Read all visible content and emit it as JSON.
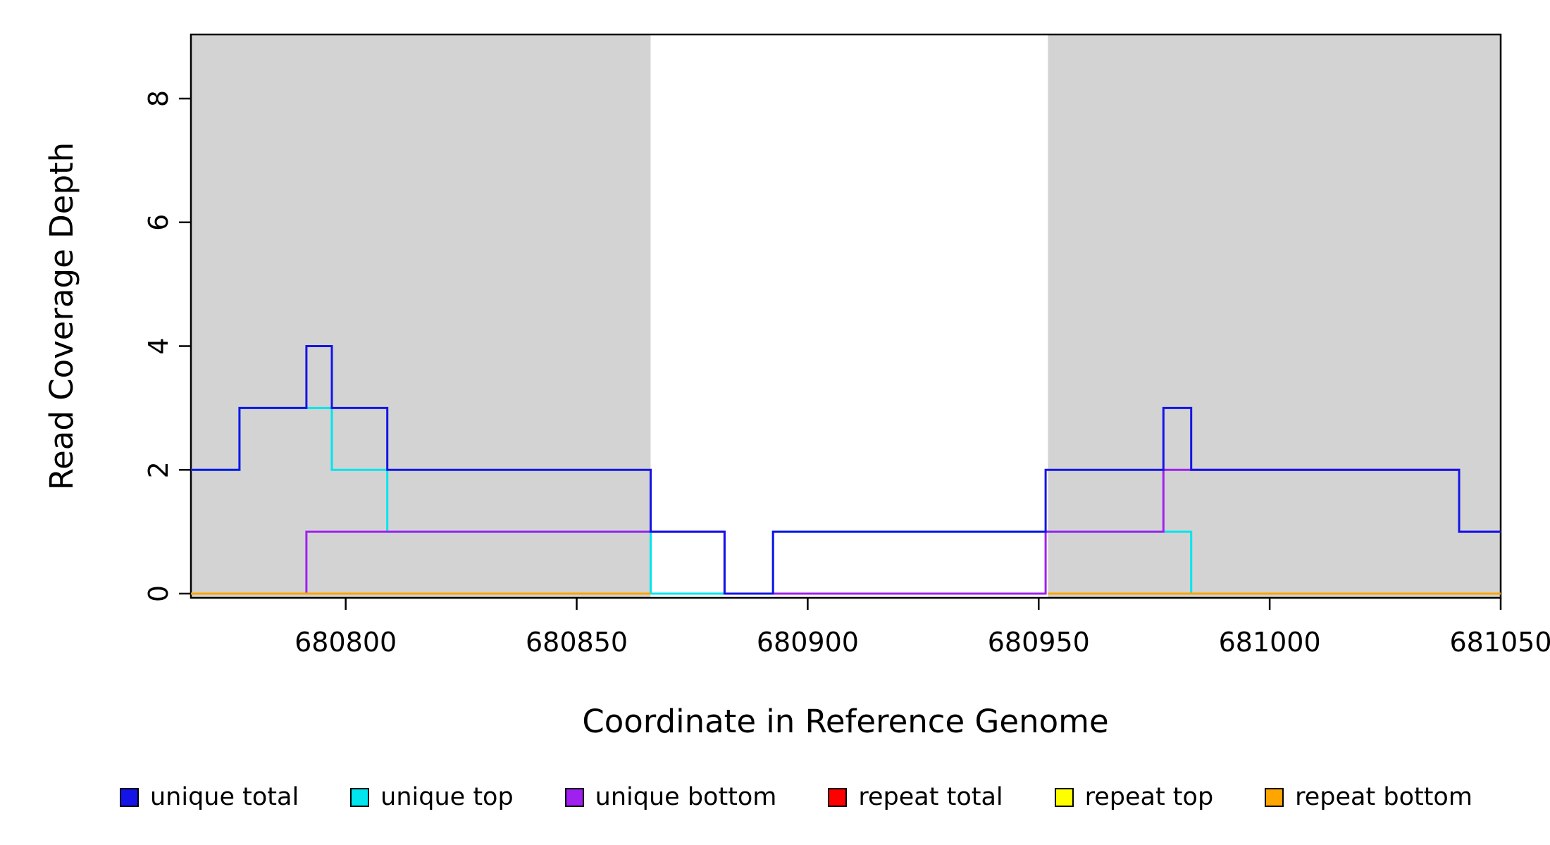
{
  "chart_data": {
    "type": "line",
    "subtype": "step-coverage",
    "title": "",
    "xlabel": "Coordinate in Reference Genome",
    "ylabel": "Read Coverage Depth",
    "xlim": [
      680766.5,
      681050
    ],
    "ylim": [
      0,
      9
    ],
    "x_ticks": [
      680800,
      680850,
      680900,
      680950,
      681000,
      681050
    ],
    "y_ticks": [
      0,
      2,
      4,
      6,
      8
    ],
    "grid": false,
    "legend_position": "bottom",
    "shaded_regions": {
      "meaning": "repeat regions",
      "color": "#d3d3d3",
      "ranges": [
        [
          680766.5,
          680866
        ],
        [
          680952,
          681050
        ]
      ]
    },
    "series": [
      {
        "name": "unique top",
        "color": "#00E5EE",
        "paths": [
          [
            [
              680766.5,
              2
            ],
            [
              680777,
              3
            ],
            [
              680797,
              2
            ],
            [
              680809,
              1
            ],
            [
              680866,
              0
            ],
            [
              680892.5,
              1
            ],
            [
              680983,
              0
            ],
            [
              681050,
              0
            ]
          ]
        ]
      },
      {
        "name": "unique bottom",
        "color": "#A020F0",
        "paths": [
          [
            [
              680766.5,
              0
            ],
            [
              680791.5,
              1
            ],
            [
              680882,
              0
            ],
            [
              680951.5,
              1
            ],
            [
              680977,
              2
            ],
            [
              681041,
              1
            ],
            [
              681050,
              1
            ]
          ]
        ]
      },
      {
        "name": "unique total",
        "color": "#1414E8",
        "paths": [
          [
            [
              680766.5,
              2
            ],
            [
              680777,
              3
            ],
            [
              680791.5,
              4
            ],
            [
              680797,
              3
            ],
            [
              680809,
              2
            ],
            [
              680866,
              1
            ],
            [
              680882,
              0
            ],
            [
              680892.5,
              1
            ],
            [
              680951.5,
              2
            ],
            [
              680977,
              3
            ],
            [
              680983,
              2
            ],
            [
              681041,
              1
            ],
            [
              681050,
              1
            ]
          ]
        ]
      },
      {
        "name": "repeat total",
        "color": "#FF0000",
        "paths": [
          [
            [
              680766.5,
              0
            ],
            [
              680866,
              0
            ]
          ],
          [
            [
              680952,
              0
            ],
            [
              681050,
              0
            ]
          ]
        ]
      },
      {
        "name": "repeat top",
        "color": "#FFFF00",
        "paths": [
          [
            [
              680766.5,
              0
            ],
            [
              680866,
              0
            ]
          ],
          [
            [
              680952,
              0
            ],
            [
              681050,
              0
            ]
          ]
        ]
      },
      {
        "name": "repeat bottom",
        "color": "#FFA500",
        "paths": [
          [
            [
              680766.5,
              0
            ],
            [
              680866,
              0
            ]
          ],
          [
            [
              680952,
              0
            ],
            [
              681050,
              0
            ]
          ]
        ]
      }
    ]
  },
  "legend": {
    "items": [
      {
        "label": "unique total",
        "color": "#1414E8"
      },
      {
        "label": "unique top",
        "color": "#00E5EE"
      },
      {
        "label": "unique bottom",
        "color": "#A020F0"
      },
      {
        "label": "repeat total",
        "color": "#FF0000"
      },
      {
        "label": "repeat top",
        "color": "#FFFF00"
      },
      {
        "label": "repeat bottom",
        "color": "#FFA500"
      }
    ]
  }
}
